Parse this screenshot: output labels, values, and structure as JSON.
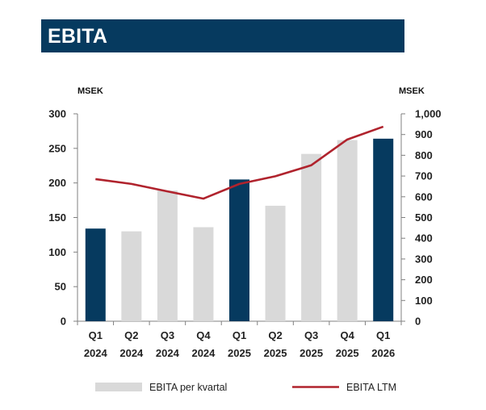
{
  "header": {
    "title": "EBITA"
  },
  "colors": {
    "banner": "#063a5f",
    "bar_highlight": "#063a5f",
    "bar_default": "#d9d9d9",
    "line": "#b0232d",
    "axis": "#808080"
  },
  "chart_data": {
    "type": "bar",
    "title": "",
    "categories": [
      [
        "Q1",
        "2024"
      ],
      [
        "Q2",
        "2024"
      ],
      [
        "Q3",
        "2024"
      ],
      [
        "Q4",
        "2024"
      ],
      [
        "Q1",
        "2025"
      ],
      [
        "Q2",
        "2025"
      ],
      [
        "Q3",
        "2025"
      ],
      [
        "Q4",
        "2025"
      ],
      [
        "Q1",
        "2026"
      ]
    ],
    "left_axis": {
      "unit": "MSEK",
      "ylim": [
        0,
        300
      ],
      "ticks": [
        "0",
        "50",
        "100",
        "150",
        "200",
        "250",
        "300"
      ]
    },
    "right_axis": {
      "unit": "MSEK",
      "ylim": [
        0,
        1000
      ],
      "ticks": [
        "0",
        "100",
        "200",
        "300",
        "400",
        "500",
        "600",
        "700",
        "800",
        "900",
        "1,000"
      ]
    },
    "series": [
      {
        "name": "EBITA per kvartal",
        "type": "bar",
        "axis": "left",
        "values": [
          134,
          130,
          189,
          136,
          205,
          167,
          242,
          262,
          264
        ],
        "highlight": [
          true,
          false,
          false,
          false,
          true,
          false,
          false,
          false,
          true
        ]
      },
      {
        "name": "EBITA LTM",
        "type": "line",
        "axis": "right",
        "values": [
          685,
          662,
          626,
          591,
          662,
          699,
          752,
          876,
          938
        ]
      }
    ],
    "grid": false,
    "legend": "bottom"
  }
}
